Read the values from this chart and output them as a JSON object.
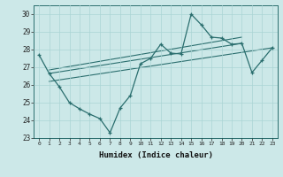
{
  "title": "",
  "xlabel": "Humidex (Indice chaleur)",
  "ylabel": "",
  "bg_color": "#cce8e8",
  "line_color": "#2a6e6e",
  "xlim": [
    -0.5,
    23.5
  ],
  "ylim": [
    23.0,
    30.5
  ],
  "yticks": [
    23,
    24,
    25,
    26,
    27,
    28,
    29,
    30
  ],
  "xticks": [
    0,
    1,
    2,
    3,
    4,
    5,
    6,
    7,
    8,
    9,
    10,
    11,
    12,
    13,
    14,
    15,
    16,
    17,
    18,
    19,
    20,
    21,
    22,
    23
  ],
  "main_x": [
    0,
    1,
    2,
    3,
    4,
    5,
    6,
    7,
    8,
    9,
    10,
    11,
    12,
    13,
    14,
    15,
    16,
    17,
    18,
    19,
    20,
    21,
    22,
    23
  ],
  "main_y": [
    27.7,
    26.65,
    25.9,
    25.0,
    24.65,
    24.35,
    24.1,
    23.3,
    24.7,
    25.4,
    27.2,
    27.5,
    28.3,
    27.8,
    27.75,
    30.0,
    29.4,
    28.7,
    28.65,
    28.3,
    28.35,
    26.7,
    27.4,
    28.1
  ],
  "trend1_x": [
    1,
    20
  ],
  "trend1_y": [
    26.65,
    28.35
  ],
  "trend2_x": [
    1,
    20
  ],
  "trend2_y": [
    26.85,
    28.7
  ],
  "trend3_x": [
    1,
    23
  ],
  "trend3_y": [
    26.2,
    28.1
  ],
  "grid_color": "#aad4d4",
  "grid_lw": 0.5,
  "spine_color": "#2a6e6e"
}
